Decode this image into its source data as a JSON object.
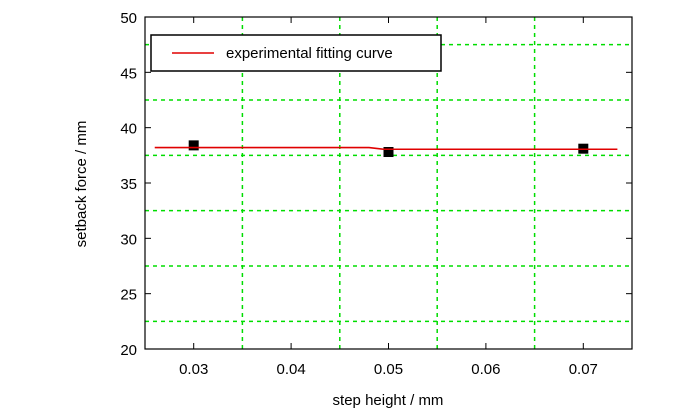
{
  "chart_data": {
    "type": "scatter",
    "xlabel": "step height / mm",
    "ylabel": "setback force / mm",
    "xlim": [
      0.025,
      0.075
    ],
    "ylim": [
      20,
      50
    ],
    "x_ticks": [
      0.03,
      0.04,
      0.05,
      0.06,
      0.07
    ],
    "x_tick_labels": [
      "0.03",
      "0.04",
      "0.05",
      "0.06",
      "0.07"
    ],
    "y_ticks": [
      20,
      25,
      30,
      35,
      40,
      45,
      50
    ],
    "y_tick_labels": [
      "20",
      "25",
      "30",
      "35",
      "40",
      "45",
      "50"
    ],
    "grid": true,
    "grid_color": "#00dd00",
    "grid_x": [
      0.035,
      0.045,
      0.055,
      0.065
    ],
    "grid_y": [
      22.5,
      27.5,
      32.5,
      37.5,
      42.5,
      47.5
    ],
    "legend_position": "top-left",
    "series": [
      {
        "name": "",
        "kind": "points",
        "color": "#000000",
        "x": [
          0.03,
          0.05,
          0.07
        ],
        "y": [
          38.4,
          37.8,
          38.1
        ]
      },
      {
        "name": "experimental fitting curve",
        "kind": "line",
        "color": "#e00000",
        "x": [
          0.026,
          0.048,
          0.0495,
          0.0735
        ],
        "y": [
          38.2,
          38.2,
          38.05,
          38.05
        ]
      }
    ]
  }
}
